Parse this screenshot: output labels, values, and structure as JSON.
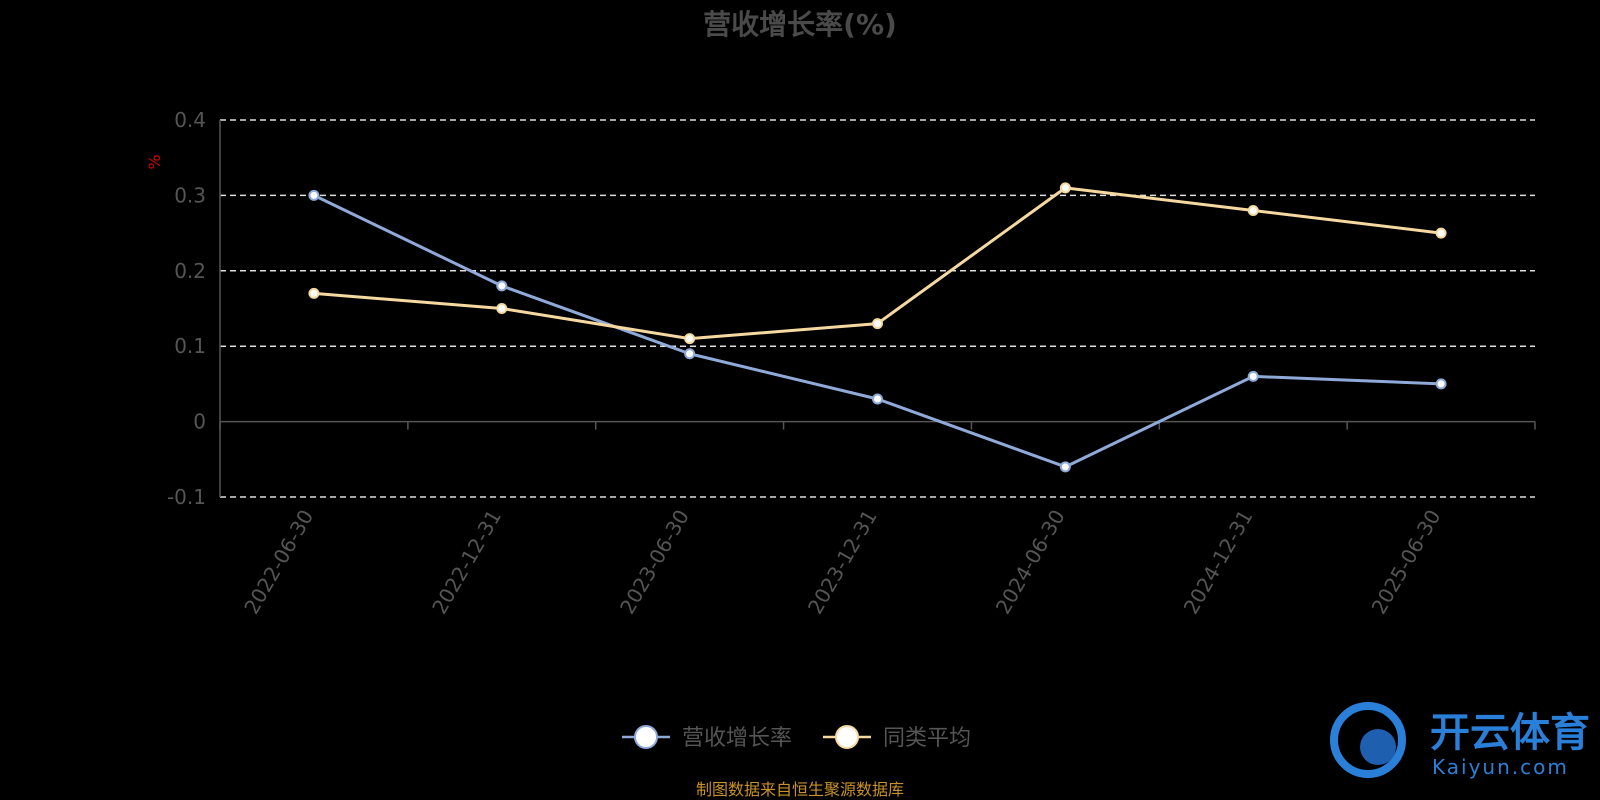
{
  "chart_data": {
    "type": "line",
    "title": "营收增长率(%)",
    "unit_label": "%",
    "categories": [
      "2022-06-30",
      "2022-12-31",
      "2023-06-30",
      "2023-12-31",
      "2024-06-30",
      "2024-12-31",
      "2025-06-30"
    ],
    "ylim": [
      -0.1,
      0.4
    ],
    "yticks": [
      "0.4",
      "0.3",
      "0.2",
      "0.1",
      "0",
      "-0.1"
    ],
    "grid": true,
    "legend_position": "bottom",
    "series": [
      {
        "name": "营收增长率",
        "color": "#8fa9d8",
        "values": [
          0.3,
          0.18,
          0.09,
          0.03,
          -0.06,
          0.06,
          0.05
        ]
      },
      {
        "name": "同类平均",
        "color": "#f5d9a0",
        "values": [
          0.17,
          0.15,
          0.11,
          0.13,
          0.31,
          0.28,
          0.25
        ]
      }
    ]
  },
  "source_text": "制图数据来自恒生聚源数据库",
  "watermark": {
    "cn": "开云体育",
    "en": "Kaiyun.com",
    "color": "#2a7fd8"
  }
}
